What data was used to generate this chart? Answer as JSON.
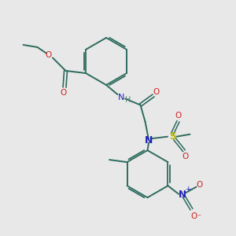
{
  "bg_color": "#e8e8e8",
  "bond_color": "#2d6b5e",
  "N_color": "#2020bb",
  "O_color": "#cc2222",
  "S_color": "#bbbb00",
  "H_color": "#5a8a7a",
  "figsize": [
    3.0,
    3.0
  ],
  "dpi": 100,
  "xlim": [
    0,
    10
  ],
  "ylim": [
    0,
    10
  ]
}
